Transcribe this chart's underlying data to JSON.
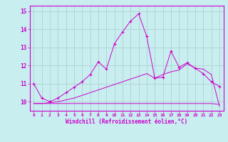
{
  "xlabel": "Windchill (Refroidissement éolien,°C)",
  "xlim": [
    -0.5,
    23.5
  ],
  "ylim": [
    9.5,
    15.3
  ],
  "background_color": "#c8eef0",
  "line_color": "#cc00cc",
  "grid_color": "#aacccc",
  "line1_x": [
    0,
    1,
    2,
    3,
    4,
    5,
    6,
    7,
    8,
    9,
    10,
    11,
    12,
    13,
    14,
    15,
    16,
    17,
    18,
    19,
    20,
    21,
    22,
    23
  ],
  "line1_y": [
    11.0,
    10.2,
    10.0,
    10.2,
    10.5,
    10.8,
    11.1,
    11.5,
    12.2,
    11.8,
    13.2,
    13.85,
    14.45,
    14.85,
    13.6,
    11.3,
    11.35,
    12.8,
    11.9,
    12.15,
    11.85,
    11.55,
    11.1,
    10.85
  ],
  "line2_x": [
    0,
    1,
    2,
    3,
    4,
    5,
    6,
    7,
    8,
    9,
    10,
    11,
    12,
    13,
    14,
    15,
    16,
    17,
    18,
    19,
    20,
    21,
    22,
    23
  ],
  "line2_y": [
    9.9,
    9.9,
    9.9,
    9.9,
    9.9,
    9.9,
    9.9,
    9.9,
    9.9,
    9.9,
    9.9,
    9.9,
    9.9,
    9.9,
    9.9,
    9.9,
    9.9,
    9.9,
    9.9,
    9.9,
    9.9,
    9.9,
    9.9,
    9.85
  ],
  "line3_x": [
    0,
    1,
    2,
    3,
    4,
    5,
    6,
    7,
    8,
    9,
    10,
    11,
    12,
    13,
    14,
    15,
    16,
    17,
    18,
    19,
    20,
    21,
    22,
    23
  ],
  "line3_y": [
    9.9,
    9.9,
    9.95,
    10.0,
    10.1,
    10.2,
    10.35,
    10.5,
    10.65,
    10.8,
    10.95,
    11.1,
    11.25,
    11.4,
    11.55,
    11.3,
    11.5,
    11.65,
    11.75,
    12.1,
    11.85,
    11.8,
    11.5,
    9.75
  ],
  "xtick_labels": [
    "0",
    "1",
    "2",
    "3",
    "4",
    "5",
    "6",
    "7",
    "8",
    "9",
    "10",
    "11",
    "12",
    "13",
    "14",
    "15",
    "16",
    "17",
    "18",
    "19",
    "20",
    "21",
    "22",
    "23"
  ],
  "ytick_values": [
    10,
    11,
    12,
    13,
    14,
    15
  ]
}
